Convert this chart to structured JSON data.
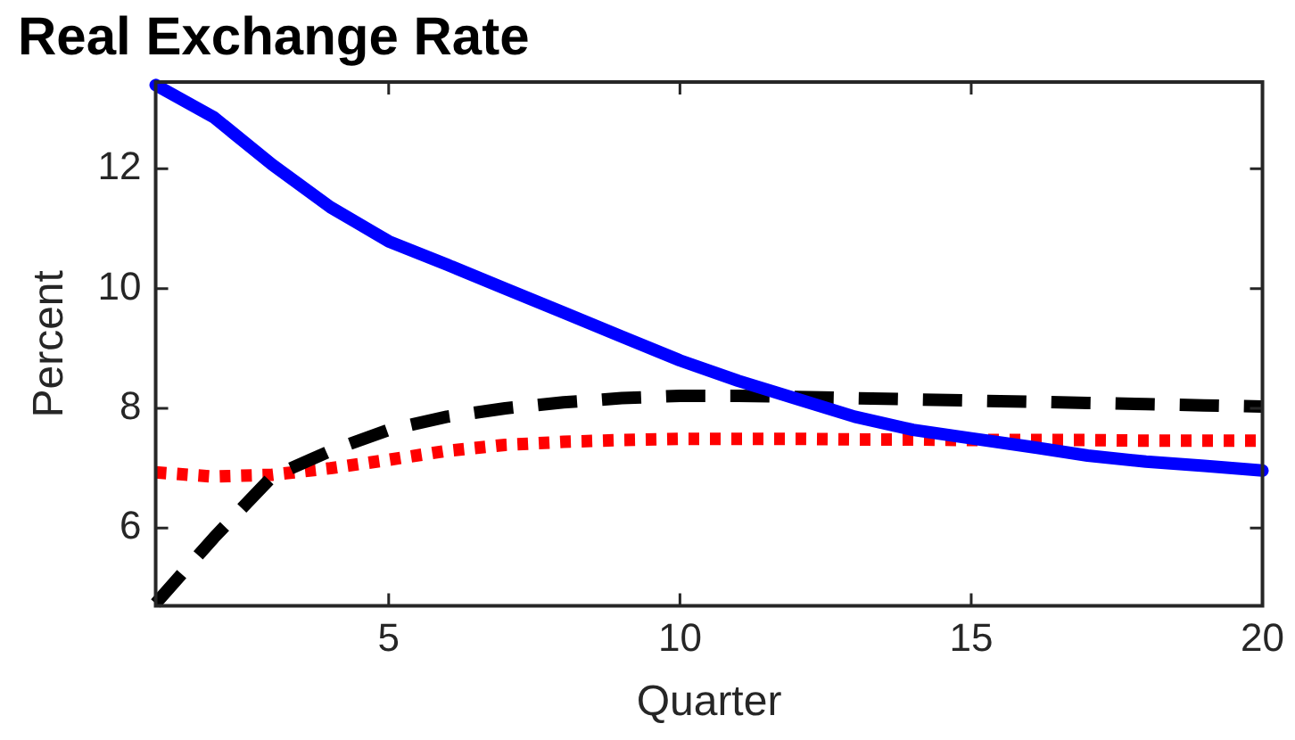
{
  "chart_data": {
    "type": "line",
    "title": "Real Exchange Rate",
    "xlabel": "Quarter",
    "ylabel": "Percent",
    "x": [
      1,
      2,
      3,
      4,
      5,
      6,
      7,
      8,
      9,
      10,
      11,
      12,
      13,
      14,
      15,
      16,
      17,
      18,
      19,
      20
    ],
    "xlim": [
      1,
      20
    ],
    "xticks": [
      5,
      10,
      15,
      20
    ],
    "ylim": [
      4.7,
      13.45
    ],
    "yticks": [
      6,
      8,
      10,
      12
    ],
    "grid": false,
    "legend": false,
    "marker": "none",
    "series": [
      {
        "color": "#0000ff",
        "line_style": "solid",
        "values": [
          13.4,
          12.86,
          12.07,
          11.36,
          10.79,
          10.4,
          10.0,
          9.6,
          9.2,
          8.8,
          8.46,
          8.16,
          7.86,
          7.64,
          7.5,
          7.36,
          7.21,
          7.11,
          7.04,
          6.96
        ]
      },
      {
        "color": "#000000",
        "line_style": "dashed",
        "values": [
          4.74,
          5.84,
          6.86,
          7.29,
          7.64,
          7.86,
          8.0,
          8.1,
          8.17,
          8.21,
          8.21,
          8.19,
          8.17,
          8.15,
          8.13,
          8.11,
          8.09,
          8.07,
          8.05,
          8.03
        ]
      },
      {
        "color": "#ff0000",
        "line_style": "dotted",
        "values": [
          6.93,
          6.86,
          6.89,
          7.0,
          7.14,
          7.29,
          7.39,
          7.44,
          7.47,
          7.49,
          7.49,
          7.49,
          7.48,
          7.48,
          7.47,
          7.47,
          7.47,
          7.46,
          7.46,
          7.46
        ]
      }
    ]
  }
}
